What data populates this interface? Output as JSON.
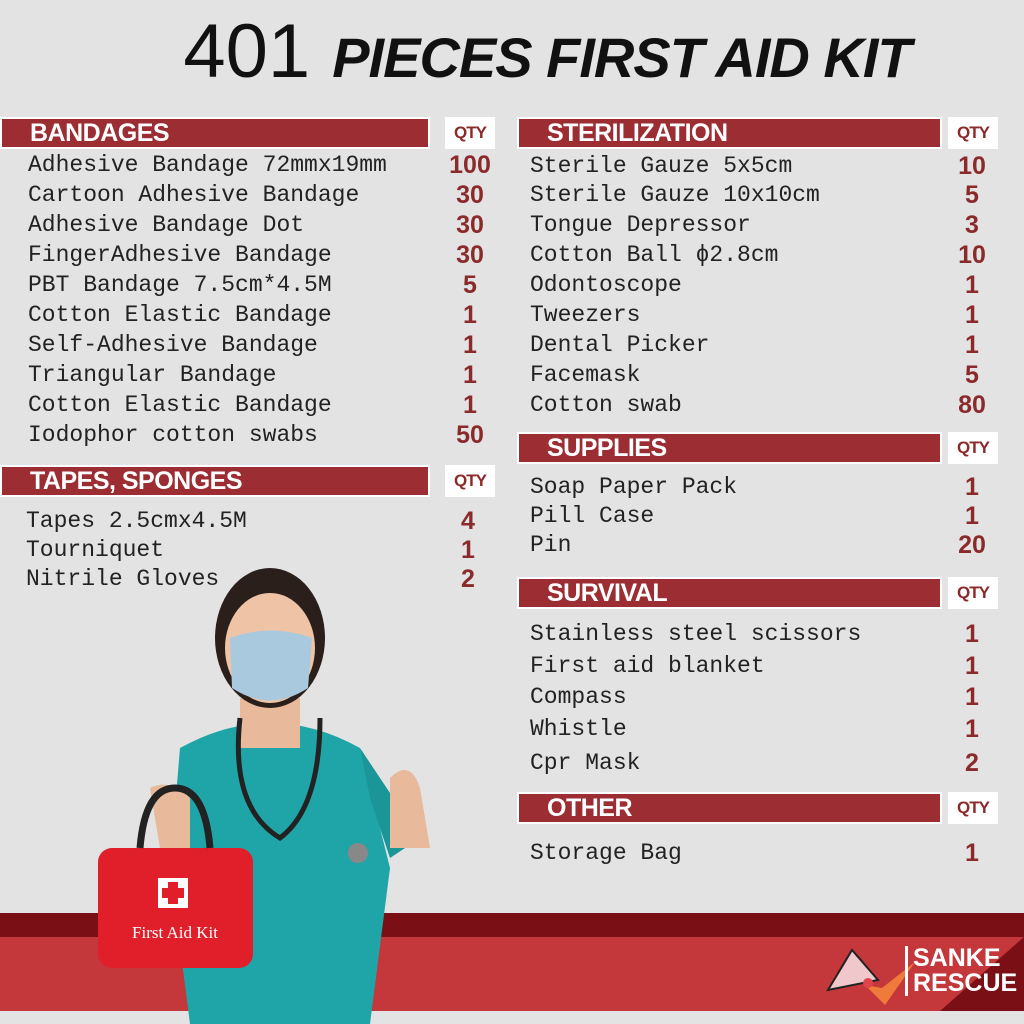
{
  "title": {
    "number": "401",
    "text": "PIECES FIRST AID KIT"
  },
  "qty_label": "QTY",
  "sections": [
    {
      "id": "bandages",
      "title": "BANDAGES",
      "items": [
        {
          "name": "Adhesive Bandage 72mmx19mm",
          "qty": "100"
        },
        {
          "name": "Cartoon Adhesive Bandage",
          "qty": "30"
        },
        {
          "name": "Adhesive Bandage Dot",
          "qty": "30"
        },
        {
          "name": "FingerAdhesive Bandage",
          "qty": "30"
        },
        {
          "name": "PBT Bandage 7.5cm*4.5M",
          "qty": "5"
        },
        {
          "name": "Cotton Elastic Bandage",
          "qty": "1"
        },
        {
          "name": "Self-Adhesive Bandage",
          "qty": "1"
        },
        {
          "name": "Triangular Bandage",
          "qty": "1"
        },
        {
          "name": "Cotton Elastic Bandage",
          "qty": "1"
        },
        {
          "name": "Iodophor cotton swabs",
          "qty": "50"
        }
      ]
    },
    {
      "id": "tapes",
      "title": "TAPES, SPONGES",
      "items": [
        {
          "name": "Tapes 2.5cmx4.5M",
          "qty": "4"
        },
        {
          "name": "Tourniquet",
          "qty": "1"
        },
        {
          "name": "Nitrile Gloves",
          "qty": "2"
        }
      ]
    },
    {
      "id": "sterilization",
      "title": "STERILIZATION",
      "items": [
        {
          "name": "Sterile Gauze 5x5cm",
          "qty": "10"
        },
        {
          "name": "Sterile Gauze 10x10cm",
          "qty": "5"
        },
        {
          "name": "Tongue Depressor",
          "qty": "3"
        },
        {
          "name": "Cotton Ball ϕ2.8cm",
          "qty": "10"
        },
        {
          "name": "Odontoscope",
          "qty": "1"
        },
        {
          "name": "Tweezers",
          "qty": "1"
        },
        {
          "name": "Dental Picker",
          "qty": "1"
        },
        {
          "name": "Facemask",
          "qty": "5"
        },
        {
          "name": "Cotton swab",
          "qty": "80"
        }
      ]
    },
    {
      "id": "supplies",
      "title": "SUPPLIES",
      "items": [
        {
          "name": "Soap Paper Pack",
          "qty": "1"
        },
        {
          "name": "Pill Case",
          "qty": "1"
        },
        {
          "name": "Pin",
          "qty": "20"
        }
      ]
    },
    {
      "id": "survival",
      "title": "SURVIVAL",
      "items": [
        {
          "name": "Stainless steel scissors",
          "qty": "1"
        },
        {
          "name": "First aid blanket",
          "qty": "1"
        },
        {
          "name": "Compass",
          "qty": "1"
        },
        {
          "name": "Whistle",
          "qty": "1"
        },
        {
          "name": "Cpr Mask",
          "qty": "2"
        }
      ]
    },
    {
      "id": "other",
      "title": "OTHER",
      "items": [
        {
          "name": "Storage Bag",
          "qty": "1"
        }
      ]
    }
  ],
  "bag_label": "First Aid Kit",
  "brand": {
    "line1": "SANKE",
    "line2": "RESCUE"
  },
  "colors": {
    "accent": "#9b2d33",
    "qty_text": "#8b2a2a",
    "band_dark": "#7a1015",
    "band": "#c4373a"
  }
}
